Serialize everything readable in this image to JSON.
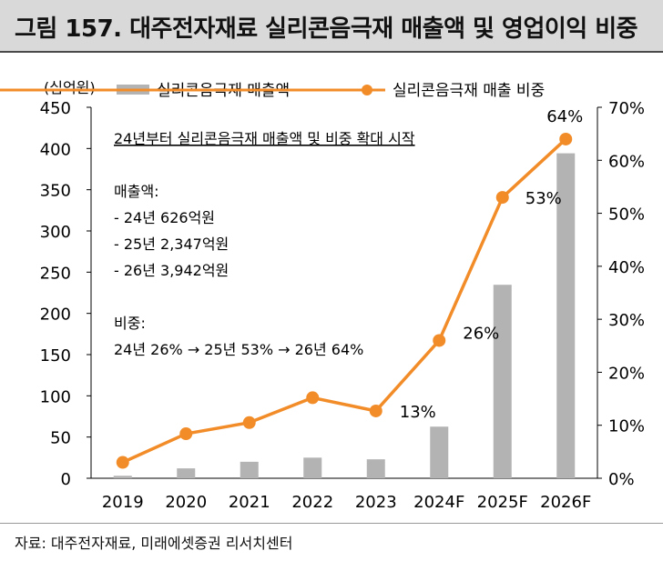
{
  "header": {
    "title": "그림 157. 대주전자재료 실리콘음극재 매출액 및 영업이익 비중"
  },
  "source": "자료: 대주전자재료, 미래에셋증권 리서치센터",
  "colors": {
    "bar": "#b3b3b3",
    "line": "#f28c28",
    "title_bg": "#d9d9d9"
  },
  "chart_data": {
    "type": "bar+line",
    "categories": [
      "2019",
      "2020",
      "2021",
      "2022",
      "2023",
      "2024F",
      "2025F",
      "2026F"
    ],
    "series": [
      {
        "name": "실리콘음극재 매출액",
        "type": "bar",
        "axis": "left",
        "values": [
          3,
          12,
          20,
          25,
          23,
          62.6,
          234.7,
          394.2
        ]
      },
      {
        "name": "실리콘음극재 매출 비중",
        "type": "line",
        "axis": "right",
        "values": [
          3.0,
          8.4,
          10.5,
          15.2,
          12.7,
          26,
          53,
          64
        ]
      }
    ],
    "y_left": {
      "label": "(십억원)",
      "min": 0,
      "max": 450,
      "step": 50,
      "ticks": [
        "0",
        "50",
        "100",
        "150",
        "200",
        "250",
        "300",
        "350",
        "400",
        "450"
      ]
    },
    "y_right": {
      "min": 0,
      "max": 70,
      "step": 10,
      "ticks": [
        "0%",
        "10%",
        "20%",
        "30%",
        "40%",
        "50%",
        "60%",
        "70%"
      ]
    },
    "data_labels": [
      {
        "index": 4,
        "text": "13%"
      },
      {
        "index": 5,
        "text": "26%"
      },
      {
        "index": 6,
        "text": "53%"
      },
      {
        "index": 7,
        "text": "64%"
      }
    ],
    "legend_position": "top",
    "annotation": {
      "heading": "24년부터 실리콘음극재 매출액 및 비중 확대 시작",
      "sales_title": "매출액:",
      "sales_lines": [
        "- 24년 626억원",
        "- 25년 2,347억원",
        "- 26년 3,942억원"
      ],
      "share_title": "비중:",
      "share_line": "24년 26% → 25년 53% → 26년 64%"
    }
  }
}
